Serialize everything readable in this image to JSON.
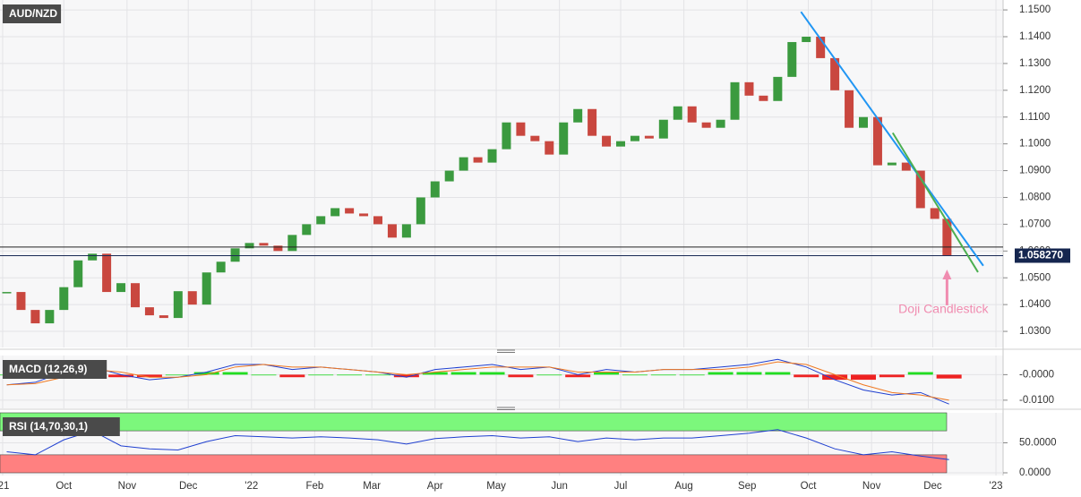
{
  "chart_data": [
    {
      "type": "candlestick",
      "title": "AUD/NZD",
      "x": [
        2,
        9,
        16,
        23,
        30,
        37,
        44,
        51,
        58,
        65,
        72,
        79,
        86,
        93,
        100,
        107,
        114,
        121,
        128,
        135,
        142,
        149,
        156,
        163,
        170,
        177,
        184,
        191,
        198,
        205,
        212,
        219,
        226,
        233,
        240,
        247,
        254,
        261,
        268,
        275,
        282,
        289,
        296,
        303,
        310,
        317,
        324,
        331,
        338,
        345,
        352,
        359,
        366,
        373,
        380,
        387,
        394,
        401,
        408,
        415,
        422,
        429,
        436,
        443,
        450,
        457,
        463
      ],
      "values": [
        1.0447,
        1.038,
        1.033,
        1.038,
        1.0465,
        1.0565,
        1.059,
        1.0447,
        1.048,
        1.039,
        1.036,
        1.035,
        1.045,
        1.04,
        1.052,
        1.056,
        1.061,
        1.063,
        1.062,
        1.06,
        1.066,
        1.07,
        1.073,
        1.076,
        1.074,
        1.073,
        1.07,
        1.065,
        1.07,
        1.08,
        1.086,
        1.09,
        1.095,
        1.093,
        1.098,
        1.108,
        1.103,
        1.101,
        1.096,
        1.108,
        1.113,
        1.103,
        1.099,
        1.101,
        1.103,
        1.102,
        1.109,
        1.114,
        1.108,
        1.106,
        1.109,
        1.123,
        1.118,
        1.116,
        1.125,
        1.138,
        1.14,
        1.132,
        1.12,
        1.106,
        1.11,
        1.092,
        1.093,
        1.09,
        1.076,
        1.072,
        1.0583
      ],
      "up_color": "#3b9a3f",
      "down_color": "#c9473f",
      "xlim": [
        -1.3,
        490.5
      ],
      "xticks": [
        {
          "value": 0,
          "label": "'21"
        },
        {
          "value": 30,
          "label": "Oct"
        },
        {
          "value": 61,
          "label": "Nov"
        },
        {
          "value": 91,
          "label": "Dec"
        },
        {
          "value": 122,
          "label": "'22"
        },
        {
          "value": 153,
          "label": "Feb"
        },
        {
          "value": 181,
          "label": "Mar"
        },
        {
          "value": 212,
          "label": "Apr"
        },
        {
          "value": 242,
          "label": "May"
        },
        {
          "value": 273,
          "label": "Jun"
        },
        {
          "value": 303,
          "label": "Jul"
        },
        {
          "value": 334,
          "label": "Aug"
        },
        {
          "value": 365,
          "label": "Sep"
        },
        {
          "value": 395,
          "label": "Oct"
        },
        {
          "value": 426,
          "label": "Nov"
        },
        {
          "value": 456,
          "label": "Dec"
        },
        {
          "value": 487,
          "label": "'23"
        }
      ],
      "ylim": [
        1.024,
        1.1537
      ],
      "yticks": [
        {
          "value": 1.15,
          "label": "1.1500"
        },
        {
          "value": 1.14,
          "label": "1.1400"
        },
        {
          "value": 1.13,
          "label": "1.1300"
        },
        {
          "value": 1.12,
          "label": "1.1200"
        },
        {
          "value": 1.11,
          "label": "1.1100"
        },
        {
          "value": 1.1,
          "label": "1.1000"
        },
        {
          "value": 1.09,
          "label": "1.0900"
        },
        {
          "value": 1.08,
          "label": "1.0800"
        },
        {
          "value": 1.07,
          "label": "1.0700"
        },
        {
          "value": 1.06,
          "label": "1.0600"
        },
        {
          "value": 1.05,
          "label": "1.0500"
        },
        {
          "value": 1.04,
          "label": "1.0400"
        },
        {
          "value": 1.03,
          "label": "1.0300"
        }
      ],
      "grid": true,
      "hline": 1.0615,
      "last_price": {
        "value": 1.05827,
        "label": "1.058270"
      },
      "trendlines": [
        {
          "color": "#2196f3",
          "x": [
            391.4,
            480.8
          ],
          "y": [
            1.1493,
            1.0545
          ]
        },
        {
          "color": "#4caf50",
          "x": [
            436.4,
            478.2
          ],
          "y": [
            1.1041,
            1.0521
          ]
        }
      ],
      "annotation": {
        "text": "Doji Candlestick",
        "x": 463,
        "y": 1.0531,
        "color": "#f08cb0"
      }
    },
    {
      "type": "macd",
      "title": "MACD (12,26,9)",
      "x": [
        2,
        16,
        30,
        44,
        58,
        72,
        86,
        100,
        114,
        128,
        142,
        156,
        170,
        184,
        198,
        212,
        226,
        240,
        254,
        268,
        282,
        296,
        310,
        324,
        338,
        352,
        366,
        380,
        394,
        408,
        422,
        436,
        450,
        464
      ],
      "series": [
        {
          "color": "#1f3fd0",
          "values": [
            -0.004,
            -0.003,
            0.001,
            0.003,
            0.0,
            -0.002,
            -0.001,
            0.001,
            0.004,
            0.004,
            0.002,
            0.003,
            0.002,
            0.001,
            -0.001,
            0.002,
            0.003,
            0.004,
            0.002,
            0.003,
            0.0,
            0.002,
            0.001,
            0.002,
            0.002,
            0.003,
            0.004,
            0.006,
            0.003,
            -0.002,
            -0.006,
            -0.008,
            -0.007,
            -0.0115
          ]
        },
        {
          "color": "#f07820",
          "values": [
            -0.004,
            -0.0035,
            -0.001,
            0.002,
            0.001,
            -0.001,
            -0.001,
            0.0,
            0.003,
            0.004,
            0.003,
            0.003,
            0.002,
            0.001,
            0.0,
            0.001,
            0.002,
            0.003,
            0.003,
            0.003,
            0.001,
            0.001,
            0.001,
            0.002,
            0.002,
            0.002,
            0.003,
            0.005,
            0.004,
            0.0,
            -0.004,
            -0.007,
            -0.008,
            -0.01
          ]
        }
      ],
      "histogram": {
        "up_color": "#22dd22",
        "down_color": "#ee2222",
        "values": [
          0,
          0.0005,
          0.002,
          0.001,
          -0.001,
          -0.001,
          0,
          0.001,
          0.001,
          0,
          -0.001,
          0,
          0,
          0,
          -0.001,
          0.001,
          0.001,
          0.001,
          -0.001,
          0,
          -0.001,
          0.001,
          0,
          0,
          0,
          0.001,
          0.001,
          0.001,
          -0.001,
          -0.002,
          -0.002,
          -0.001,
          0.001,
          -0.0015
        ]
      },
      "ylim": [
        -0.0132,
        0.0075
      ],
      "yticks": [
        {
          "value": 0,
          "label": "-0.0000"
        },
        {
          "value": -0.01,
          "label": "-0.0100"
        }
      ]
    },
    {
      "type": "rsi",
      "title": "RSI (14,70,30,1)",
      "x": [
        2,
        16,
        30,
        44,
        58,
        72,
        86,
        100,
        114,
        128,
        142,
        156,
        170,
        184,
        198,
        212,
        226,
        240,
        254,
        268,
        282,
        296,
        310,
        324,
        338,
        352,
        366,
        380,
        394,
        408,
        422,
        436,
        450,
        464
      ],
      "values": [
        35,
        30,
        55,
        70,
        45,
        40,
        38,
        52,
        62,
        60,
        58,
        60,
        58,
        55,
        48,
        57,
        60,
        62,
        58,
        60,
        52,
        58,
        55,
        58,
        58,
        62,
        66,
        72,
        58,
        40,
        30,
        35,
        28,
        22
      ],
      "color": "#1f3fd0",
      "bands": [
        {
          "from": 70,
          "to": 100,
          "color": "#7cf77c"
        },
        {
          "from": 0,
          "to": 30,
          "color": "#ff8080"
        }
      ],
      "ylim": [
        -4.5,
        100
      ],
      "yticks": [
        {
          "value": 50,
          "label": "50.0000"
        },
        {
          "value": 0,
          "label": "0.0000"
        }
      ]
    }
  ]
}
